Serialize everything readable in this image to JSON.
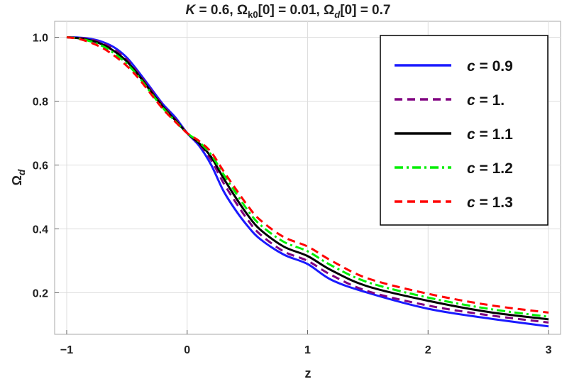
{
  "chart_data": {
    "type": "line",
    "title_parts": {
      "k": "K",
      "k_eq": " = 0.6, ",
      "omega1": "Ω",
      "omega1_sub": "k0",
      "omega1_eq": "[0] = 0.01, ",
      "omega2": "Ω",
      "omega2_sub": "d",
      "omega2_eq": "[0] = 0.7"
    },
    "xlabel": "z",
    "ylabel_main": "Ω",
    "ylabel_sub": "d",
    "xlim": [
      -1.1,
      3.1
    ],
    "ylim": [
      0.07,
      1.05
    ],
    "x_ticks": [
      -1,
      0,
      1,
      2,
      3
    ],
    "x_tick_labels": [
      "−1",
      "0",
      "1",
      "2",
      "3"
    ],
    "y_ticks": [
      0.2,
      0.4,
      0.6,
      0.8,
      1.0
    ],
    "y_tick_labels": [
      "0.2",
      "0.4",
      "0.6",
      "0.8",
      "1.0"
    ],
    "grid": true,
    "legend_position": "top-right",
    "x": [
      -1.0,
      -0.9,
      -0.8,
      -0.7,
      -0.6,
      -0.5,
      -0.4,
      -0.3,
      -0.2,
      -0.1,
      0.0,
      0.1,
      0.2,
      0.3,
      0.4,
      0.5,
      0.6,
      0.8,
      1.0,
      1.2,
      1.5,
      2.0,
      2.5,
      3.0
    ],
    "series": [
      {
        "name": "c = 0.9",
        "color": "#1a1aff",
        "dash": "solid",
        "values": [
          1.0,
          0.999,
          0.995,
          0.985,
          0.967,
          0.936,
          0.89,
          0.84,
          0.79,
          0.75,
          0.7,
          0.66,
          0.6,
          0.52,
          0.46,
          0.41,
          0.37,
          0.32,
          0.29,
          0.24,
          0.2,
          0.15,
          0.12,
          0.095
        ]
      },
      {
        "name": "c = 1.",
        "color": "#800080",
        "dash": "dashed",
        "values": [
          1.0,
          0.998,
          0.993,
          0.981,
          0.961,
          0.93,
          0.885,
          0.835,
          0.786,
          0.745,
          0.7,
          0.665,
          0.615,
          0.545,
          0.485,
          0.43,
          0.385,
          0.33,
          0.3,
          0.255,
          0.205,
          0.16,
          0.13,
          0.107
        ]
      },
      {
        "name": "c = 1.1",
        "color": "#000000",
        "dash": "solid",
        "values": [
          1.0,
          0.997,
          0.99,
          0.977,
          0.955,
          0.924,
          0.88,
          0.83,
          0.782,
          0.741,
          0.7,
          0.668,
          0.625,
          0.56,
          0.5,
          0.445,
          0.4,
          0.345,
          0.315,
          0.27,
          0.22,
          0.175,
          0.14,
          0.117
        ]
      },
      {
        "name": "c = 1.2",
        "color": "#00ee00",
        "dash": "dashdot",
        "values": [
          1.0,
          0.996,
          0.987,
          0.972,
          0.948,
          0.917,
          0.875,
          0.826,
          0.778,
          0.738,
          0.7,
          0.672,
          0.632,
          0.572,
          0.515,
          0.46,
          0.415,
          0.36,
          0.33,
          0.285,
          0.233,
          0.185,
          0.15,
          0.125
        ]
      },
      {
        "name": "c = 1.3",
        "color": "#ff0000",
        "dash": "dashed",
        "values": [
          1.0,
          0.995,
          0.983,
          0.966,
          0.941,
          0.91,
          0.87,
          0.822,
          0.775,
          0.736,
          0.7,
          0.675,
          0.64,
          0.582,
          0.527,
          0.474,
          0.43,
          0.375,
          0.345,
          0.3,
          0.245,
          0.197,
          0.162,
          0.138
        ]
      }
    ]
  }
}
